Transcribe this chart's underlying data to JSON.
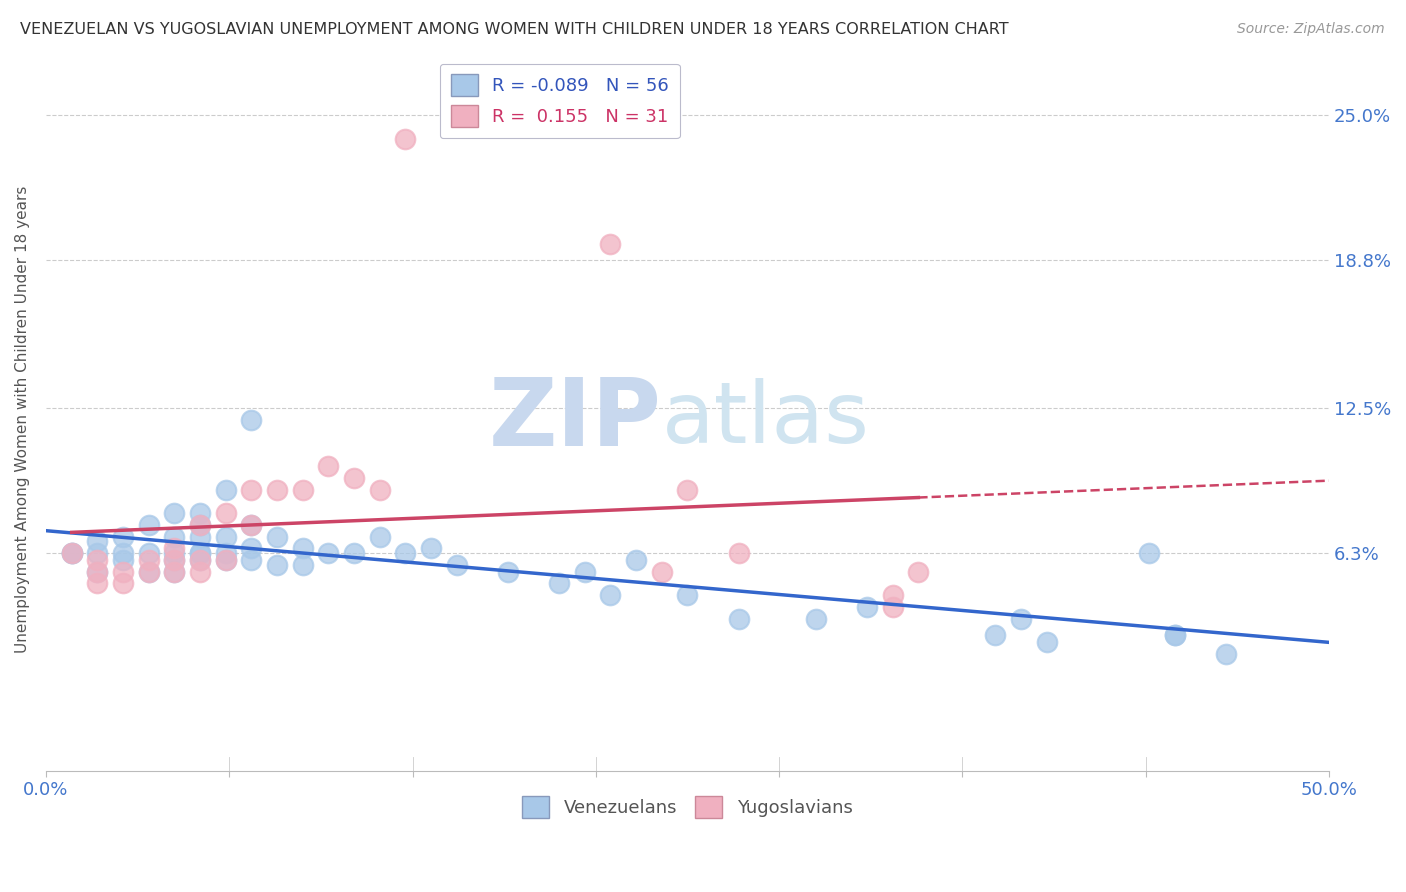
{
  "title": "VENEZUELAN VS YUGOSLAVIAN UNEMPLOYMENT AMONG WOMEN WITH CHILDREN UNDER 18 YEARS CORRELATION CHART",
  "source": "Source: ZipAtlas.com",
  "ylabel": "Unemployment Among Women with Children Under 18 years",
  "xlim": [
    0.0,
    0.5
  ],
  "ylim": [
    -0.03,
    0.27
  ],
  "yticks": [
    0.063,
    0.125,
    0.188,
    0.25
  ],
  "ytick_labels": [
    "6.3%",
    "12.5%",
    "18.8%",
    "25.0%"
  ],
  "xticks": [
    0.0,
    0.0714,
    0.1429,
    0.2143,
    0.2857,
    0.3571,
    0.4286,
    0.5
  ],
  "xtick_labels": [
    "0.0%",
    "",
    "",
    "",
    "",
    "",
    "",
    "50.0%"
  ],
  "venezuelan_color": "#a8c8e8",
  "yugoslavian_color": "#f0b0c0",
  "venezuelan_line_color": "#3366cc",
  "yugoslavian_line_color": "#cc4466",
  "watermark_zip": "ZIP",
  "watermark_atlas": "atlas",
  "watermark_color": "#dde8f5",
  "venezuelan_scatter_x": [
    0.01,
    0.01,
    0.02,
    0.02,
    0.02,
    0.03,
    0.03,
    0.03,
    0.04,
    0.04,
    0.04,
    0.05,
    0.05,
    0.05,
    0.05,
    0.05,
    0.06,
    0.06,
    0.06,
    0.06,
    0.06,
    0.06,
    0.07,
    0.07,
    0.07,
    0.07,
    0.08,
    0.08,
    0.08,
    0.08,
    0.09,
    0.09,
    0.1,
    0.1,
    0.11,
    0.12,
    0.13,
    0.14,
    0.15,
    0.16,
    0.18,
    0.2,
    0.21,
    0.22,
    0.23,
    0.25,
    0.27,
    0.3,
    0.32,
    0.37,
    0.38,
    0.39,
    0.43,
    0.44,
    0.44,
    0.46
  ],
  "venezuelan_scatter_y": [
    0.063,
    0.063,
    0.063,
    0.055,
    0.068,
    0.063,
    0.06,
    0.07,
    0.055,
    0.063,
    0.075,
    0.055,
    0.06,
    0.063,
    0.07,
    0.08,
    0.06,
    0.063,
    0.063,
    0.07,
    0.075,
    0.08,
    0.06,
    0.063,
    0.07,
    0.09,
    0.06,
    0.065,
    0.075,
    0.12,
    0.058,
    0.07,
    0.058,
    0.065,
    0.063,
    0.063,
    0.07,
    0.063,
    0.065,
    0.058,
    0.055,
    0.05,
    0.055,
    0.045,
    0.06,
    0.045,
    0.035,
    0.035,
    0.04,
    0.028,
    0.035,
    0.025,
    0.063,
    0.028,
    0.028,
    0.02
  ],
  "yugoslavian_scatter_x": [
    0.01,
    0.02,
    0.02,
    0.02,
    0.03,
    0.03,
    0.04,
    0.04,
    0.05,
    0.05,
    0.05,
    0.06,
    0.06,
    0.06,
    0.07,
    0.07,
    0.08,
    0.08,
    0.09,
    0.1,
    0.11,
    0.12,
    0.13,
    0.14,
    0.22,
    0.24,
    0.25,
    0.27,
    0.33,
    0.33,
    0.34
  ],
  "yugoslavian_scatter_y": [
    0.063,
    0.05,
    0.06,
    0.055,
    0.05,
    0.055,
    0.055,
    0.06,
    0.06,
    0.065,
    0.055,
    0.055,
    0.06,
    0.075,
    0.06,
    0.08,
    0.075,
    0.09,
    0.09,
    0.09,
    0.1,
    0.095,
    0.09,
    0.24,
    0.195,
    0.055,
    0.09,
    0.063,
    0.045,
    0.04,
    0.055
  ],
  "background_color": "#ffffff",
  "grid_color": "#cccccc"
}
